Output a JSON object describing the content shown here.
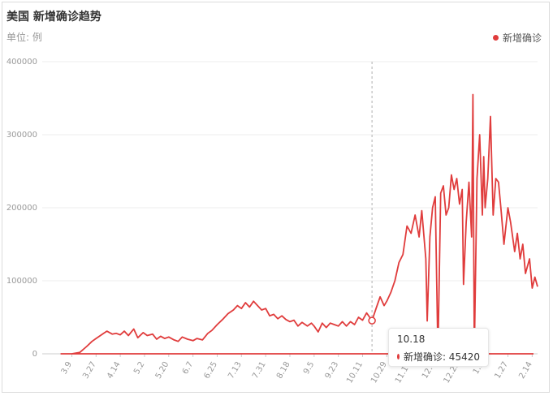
{
  "title": "美国 新增确诊趋势",
  "unit_label": "单位: 例",
  "legend": {
    "label": "新增确诊",
    "color": "#e03c3c"
  },
  "tooltip": {
    "date": "10.18",
    "label": "新增确诊: 45420"
  },
  "chart_data": {
    "type": "line",
    "title": "美国 新增确诊趋势",
    "ylabel": "单位: 例",
    "ylim": [
      0,
      400000
    ],
    "yticks": [
      "0",
      "100000",
      "200000",
      "300000",
      "400000"
    ],
    "xticks": [
      "3.9",
      "3.27",
      "4.14",
      "5.2",
      "5.20",
      "6.7",
      "6.25",
      "7.13",
      "7.31",
      "8.18",
      "9.5",
      "9.23",
      "10.11",
      "10.29",
      "11.16",
      "12.4",
      "12.22",
      "1.9",
      "1.27",
      "2.14"
    ],
    "grid": true,
    "legend_position": "top-right",
    "series": [
      {
        "name": "新增确诊",
        "color": "#e03c3c",
        "points": [
          [
            "2.15",
            0
          ],
          [
            "3.1",
            0
          ],
          [
            "3.9",
            0
          ],
          [
            "3.15",
            2000
          ],
          [
            "3.20",
            10000
          ],
          [
            "3.24",
            17000
          ],
          [
            "3.27",
            21000
          ],
          [
            "3.31",
            26000
          ],
          [
            "4.4",
            31000
          ],
          [
            "4.8",
            27000
          ],
          [
            "4.11",
            28000
          ],
          [
            "4.14",
            26000
          ],
          [
            "4.17",
            31000
          ],
          [
            "4.20",
            25000
          ],
          [
            "4.24",
            34000
          ],
          [
            "4.27",
            22000
          ],
          [
            "5.1",
            29000
          ],
          [
            "5.4",
            25000
          ],
          [
            "5.8",
            27000
          ],
          [
            "5.11",
            20000
          ],
          [
            "5.14",
            24000
          ],
          [
            "5.17",
            21000
          ],
          [
            "5.20",
            23000
          ],
          [
            "5.24",
            19000
          ],
          [
            "5.27",
            17000
          ],
          [
            "5.30",
            23000
          ],
          [
            "6.3",
            20000
          ],
          [
            "6.7",
            18000
          ],
          [
            "6.10",
            21000
          ],
          [
            "6.14",
            19000
          ],
          [
            "6.18",
            28000
          ],
          [
            "6.21",
            32000
          ],
          [
            "6.25",
            40000
          ],
          [
            "6.29",
            47000
          ],
          [
            "7.3",
            55000
          ],
          [
            "7.7",
            60000
          ],
          [
            "7.10",
            66000
          ],
          [
            "7.13",
            62000
          ],
          [
            "7.16",
            70000
          ],
          [
            "7.19",
            64000
          ],
          [
            "7.22",
            72000
          ],
          [
            "7.25",
            66000
          ],
          [
            "7.28",
            60000
          ],
          [
            "7.31",
            62000
          ],
          [
            "8.3",
            52000
          ],
          [
            "8.6",
            54000
          ],
          [
            "8.9",
            48000
          ],
          [
            "8.12",
            52000
          ],
          [
            "8.15",
            47000
          ],
          [
            "8.18",
            44000
          ],
          [
            "8.21",
            46000
          ],
          [
            "8.24",
            38000
          ],
          [
            "8.27",
            43000
          ],
          [
            "8.31",
            38000
          ],
          [
            "9.3",
            42000
          ],
          [
            "9.5",
            38000
          ],
          [
            "9.8",
            30000
          ],
          [
            "9.11",
            42000
          ],
          [
            "9.14",
            36000
          ],
          [
            "9.17",
            42000
          ],
          [
            "9.20",
            40000
          ],
          [
            "9.23",
            38000
          ],
          [
            "9.26",
            44000
          ],
          [
            "9.29",
            38000
          ],
          [
            "10.2",
            44000
          ],
          [
            "10.5",
            40000
          ],
          [
            "10.8",
            50000
          ],
          [
            "10.11",
            46000
          ],
          [
            "10.14",
            56000
          ],
          [
            "10.18",
            45420
          ],
          [
            "10.21",
            62000
          ],
          [
            "10.24",
            78000
          ],
          [
            "10.27",
            66000
          ],
          [
            "10.29",
            72000
          ],
          [
            "11.1",
            84000
          ],
          [
            "11.4",
            100000
          ],
          [
            "11.7",
            125000
          ],
          [
            "11.10",
            136000
          ],
          [
            "11.13",
            175000
          ],
          [
            "11.16",
            165000
          ],
          [
            "11.19",
            190000
          ],
          [
            "11.22",
            160000
          ],
          [
            "11.24",
            196000
          ],
          [
            "11.27",
            130000
          ],
          [
            "11.28",
            45000
          ],
          [
            "11.30",
            160000
          ],
          [
            "12.2",
            200000
          ],
          [
            "12.4",
            215000
          ],
          [
            "12.6",
            0
          ],
          [
            "12.8",
            220000
          ],
          [
            "12.10",
            230000
          ],
          [
            "12.12",
            190000
          ],
          [
            "12.14",
            200000
          ],
          [
            "12.16",
            245000
          ],
          [
            "12.18",
            225000
          ],
          [
            "12.20",
            240000
          ],
          [
            "12.22",
            205000
          ],
          [
            "12.24",
            225000
          ],
          [
            "12.25",
            95000
          ],
          [
            "12.27",
            180000
          ],
          [
            "12.29",
            235000
          ],
          [
            "12.31",
            160000
          ],
          [
            "1.1",
            355000
          ],
          [
            "1.2",
            0
          ],
          [
            "1.4",
            240000
          ],
          [
            "1.6",
            300000
          ],
          [
            "1.8",
            190000
          ],
          [
            "1.9",
            270000
          ],
          [
            "1.10",
            200000
          ],
          [
            "1.12",
            240000
          ],
          [
            "1.14",
            325000
          ],
          [
            "1.16",
            190000
          ],
          [
            "1.18",
            240000
          ],
          [
            "1.20",
            235000
          ],
          [
            "1.22",
            195000
          ],
          [
            "1.24",
            150000
          ],
          [
            "1.27",
            200000
          ],
          [
            "1.29",
            180000
          ],
          [
            "2.1",
            140000
          ],
          [
            "2.3",
            165000
          ],
          [
            "2.5",
            130000
          ],
          [
            "2.7",
            150000
          ],
          [
            "2.9",
            110000
          ],
          [
            "2.12",
            130000
          ],
          [
            "2.14",
            90000
          ],
          [
            "2.16",
            105000
          ],
          [
            "2.18",
            92000
          ]
        ]
      }
    ]
  }
}
